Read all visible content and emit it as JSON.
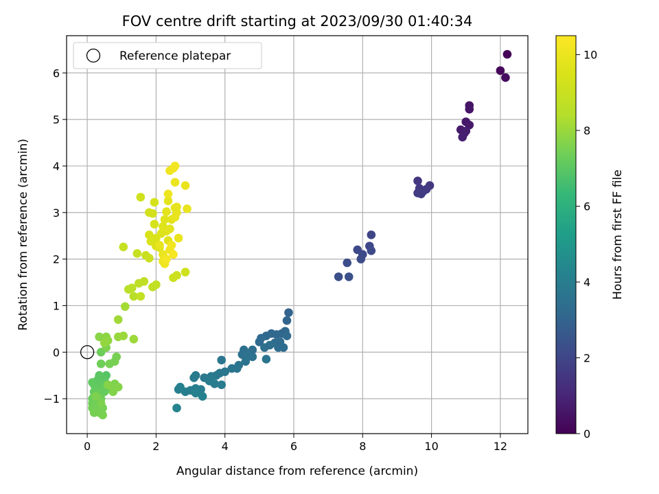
{
  "chart_data": {
    "type": "scatter",
    "title": "FOV centre drift starting at 2023/09/30 01:40:34",
    "xlabel": "Angular distance from reference (arcmin)",
    "ylabel": "Rotation from reference (arcmin)",
    "xlim": [
      -0.6,
      12.8
    ],
    "ylim": [
      -1.75,
      6.8
    ],
    "xticks": [
      0,
      2,
      4,
      6,
      8,
      10,
      12
    ],
    "yticks": [
      -1,
      0,
      1,
      2,
      3,
      4,
      5,
      6
    ],
    "xtick_labels": [
      "0",
      "2",
      "4",
      "6",
      "8",
      "10",
      "12"
    ],
    "ytick_labels": [
      "−1",
      "0",
      "1",
      "2",
      "3",
      "4",
      "5",
      "6"
    ],
    "grid": true,
    "legend": {
      "position": "top-left",
      "entries": [
        "Reference platepar"
      ]
    },
    "reference_point": {
      "x": 0,
      "y": 0
    },
    "colorbar": {
      "label": "Hours from first FF file",
      "range": [
        0,
        10.5
      ],
      "ticks": [
        0,
        2,
        4,
        6,
        8,
        10
      ],
      "tick_labels": [
        "0",
        "2",
        "4",
        "6",
        "8",
        "10"
      ],
      "colormap": "viridis"
    },
    "points": [
      {
        "x": 12.2,
        "y": 6.4,
        "h": 0.1
      },
      {
        "x": 12.0,
        "y": 6.05,
        "h": 0.2
      },
      {
        "x": 12.15,
        "y": 5.9,
        "h": 0.3
      },
      {
        "x": 11.1,
        "y": 5.3,
        "h": 0.5
      },
      {
        "x": 11.1,
        "y": 5.22,
        "h": 0.55
      },
      {
        "x": 11.0,
        "y": 4.95,
        "h": 0.6
      },
      {
        "x": 11.1,
        "y": 4.88,
        "h": 0.65
      },
      {
        "x": 10.85,
        "y": 4.78,
        "h": 0.7
      },
      {
        "x": 11.0,
        "y": 4.75,
        "h": 0.75
      },
      {
        "x": 10.95,
        "y": 4.7,
        "h": 0.8
      },
      {
        "x": 10.9,
        "y": 4.62,
        "h": 0.85
      },
      {
        "x": 9.6,
        "y": 3.68,
        "h": 1.5
      },
      {
        "x": 9.95,
        "y": 3.58,
        "h": 1.55
      },
      {
        "x": 9.65,
        "y": 3.52,
        "h": 1.6
      },
      {
        "x": 9.85,
        "y": 3.5,
        "h": 1.62
      },
      {
        "x": 9.75,
        "y": 3.45,
        "h": 1.65
      },
      {
        "x": 9.6,
        "y": 3.42,
        "h": 1.7
      },
      {
        "x": 9.7,
        "y": 3.4,
        "h": 1.72
      },
      {
        "x": 8.25,
        "y": 2.52,
        "h": 2.0
      },
      {
        "x": 8.2,
        "y": 2.28,
        "h": 2.05
      },
      {
        "x": 7.85,
        "y": 2.2,
        "h": 2.1
      },
      {
        "x": 8.25,
        "y": 2.18,
        "h": 2.12
      },
      {
        "x": 8.0,
        "y": 2.1,
        "h": 2.15
      },
      {
        "x": 7.95,
        "y": 2.0,
        "h": 2.2
      },
      {
        "x": 7.55,
        "y": 1.92,
        "h": 2.25
      },
      {
        "x": 7.3,
        "y": 1.62,
        "h": 2.3
      },
      {
        "x": 7.6,
        "y": 1.62,
        "h": 2.35
      },
      {
        "x": 5.85,
        "y": 0.85,
        "h": 3.0
      },
      {
        "x": 5.8,
        "y": 0.68,
        "h": 3.05
      },
      {
        "x": 5.75,
        "y": 0.45,
        "h": 3.1
      },
      {
        "x": 5.65,
        "y": 0.4,
        "h": 3.12
      },
      {
        "x": 5.5,
        "y": 0.38,
        "h": 3.15
      },
      {
        "x": 5.35,
        "y": 0.4,
        "h": 3.17
      },
      {
        "x": 5.2,
        "y": 0.35,
        "h": 3.2
      },
      {
        "x": 5.05,
        "y": 0.3,
        "h": 3.22
      },
      {
        "x": 5.0,
        "y": 0.22,
        "h": 3.25
      },
      {
        "x": 5.8,
        "y": 0.35,
        "h": 3.27
      },
      {
        "x": 5.6,
        "y": 0.22,
        "h": 3.3
      },
      {
        "x": 5.45,
        "y": 0.2,
        "h": 3.32
      },
      {
        "x": 5.7,
        "y": 0.1,
        "h": 3.35
      },
      {
        "x": 5.55,
        "y": 0.1,
        "h": 3.37
      },
      {
        "x": 5.3,
        "y": 0.15,
        "h": 3.4
      },
      {
        "x": 5.15,
        "y": 0.1,
        "h": 3.42
      },
      {
        "x": 4.8,
        "y": 0.05,
        "h": 3.45
      },
      {
        "x": 4.55,
        "y": 0.05,
        "h": 3.5
      },
      {
        "x": 4.5,
        "y": -0.05,
        "h": 3.52
      },
      {
        "x": 4.65,
        "y": -0.05,
        "h": 3.55
      },
      {
        "x": 4.8,
        "y": -0.1,
        "h": 3.57
      },
      {
        "x": 5.2,
        "y": -0.15,
        "h": 3.6
      },
      {
        "x": 4.6,
        "y": -0.2,
        "h": 3.62
      },
      {
        "x": 4.4,
        "y": -0.28,
        "h": 3.65
      },
      {
        "x": 4.35,
        "y": -0.35,
        "h": 3.67
      },
      {
        "x": 4.2,
        "y": -0.35,
        "h": 3.7
      },
      {
        "x": 3.9,
        "y": -0.17,
        "h": 3.72
      },
      {
        "x": 4.0,
        "y": -0.42,
        "h": 3.75
      },
      {
        "x": 3.85,
        "y": -0.45,
        "h": 3.77
      },
      {
        "x": 3.75,
        "y": -0.5,
        "h": 3.8
      },
      {
        "x": 3.6,
        "y": -0.52,
        "h": 3.82
      },
      {
        "x": 3.4,
        "y": -0.55,
        "h": 3.85
      },
      {
        "x": 3.15,
        "y": -0.5,
        "h": 3.87
      },
      {
        "x": 3.1,
        "y": -0.55,
        "h": 3.9
      },
      {
        "x": 3.55,
        "y": -0.62,
        "h": 3.92
      },
      {
        "x": 3.7,
        "y": -0.68,
        "h": 3.95
      },
      {
        "x": 3.9,
        "y": -0.7,
        "h": 3.97
      },
      {
        "x": 3.3,
        "y": -0.8,
        "h": 4.0
      },
      {
        "x": 3.15,
        "y": -0.78,
        "h": 4.02
      },
      {
        "x": 3.0,
        "y": -0.82,
        "h": 4.05
      },
      {
        "x": 2.85,
        "y": -0.85,
        "h": 4.07
      },
      {
        "x": 2.7,
        "y": -0.75,
        "h": 4.1
      },
      {
        "x": 2.65,
        "y": -0.8,
        "h": 4.12
      },
      {
        "x": 3.15,
        "y": -0.88,
        "h": 4.15
      },
      {
        "x": 3.35,
        "y": -0.95,
        "h": 4.17
      },
      {
        "x": 2.6,
        "y": -1.2,
        "h": 4.2
      },
      {
        "x": 0.55,
        "y": -0.5,
        "h": 6.9
      },
      {
        "x": 0.45,
        "y": -0.55,
        "h": 6.95
      },
      {
        "x": 0.5,
        "y": -0.6,
        "h": 7.0
      },
      {
        "x": 0.35,
        "y": -0.5,
        "h": 7.0
      },
      {
        "x": 0.3,
        "y": -0.6,
        "h": 7.02
      },
      {
        "x": 0.25,
        "y": -0.65,
        "h": 7.05
      },
      {
        "x": 0.2,
        "y": -0.7,
        "h": 7.07
      },
      {
        "x": 0.15,
        "y": -0.65,
        "h": 7.1
      },
      {
        "x": 0.45,
        "y": -0.7,
        "h": 7.1
      },
      {
        "x": 0.4,
        "y": -0.8,
        "h": 7.12
      },
      {
        "x": 0.3,
        "y": -0.8,
        "h": 7.15
      },
      {
        "x": 0.2,
        "y": -0.85,
        "h": 7.17
      },
      {
        "x": 0.5,
        "y": -0.85,
        "h": 7.2
      },
      {
        "x": 0.55,
        "y": -0.78,
        "h": 7.2
      },
      {
        "x": 0.35,
        "y": -0.9,
        "h": 7.22
      },
      {
        "x": 0.2,
        "y": -0.95,
        "h": 7.25
      },
      {
        "x": 0.15,
        "y": -1.0,
        "h": 7.27
      },
      {
        "x": 0.3,
        "y": -1.05,
        "h": 7.3
      },
      {
        "x": 0.15,
        "y": -1.1,
        "h": 7.32
      },
      {
        "x": 0.4,
        "y": -1.0,
        "h": 7.35
      },
      {
        "x": 0.25,
        "y": -1.15,
        "h": 7.37
      },
      {
        "x": 0.15,
        "y": -1.2,
        "h": 7.4
      },
      {
        "x": 0.3,
        "y": -1.25,
        "h": 7.42
      },
      {
        "x": 0.45,
        "y": -1.2,
        "h": 7.45
      },
      {
        "x": 0.2,
        "y": -1.3,
        "h": 7.47
      },
      {
        "x": 0.35,
        "y": -1.3,
        "h": 7.5
      },
      {
        "x": 0.45,
        "y": -1.35,
        "h": 7.52
      },
      {
        "x": 0.4,
        "y": -1.1,
        "h": 7.55
      },
      {
        "x": 0.25,
        "y": -0.95,
        "h": 7.57
      },
      {
        "x": 0.4,
        "y": 0.0,
        "h": 7.3
      },
      {
        "x": 0.4,
        "y": -0.25,
        "h": 7.35
      },
      {
        "x": 0.65,
        "y": -0.25,
        "h": 7.45
      },
      {
        "x": 0.85,
        "y": -0.1,
        "h": 7.5
      },
      {
        "x": 0.8,
        "y": -0.2,
        "h": 7.5
      },
      {
        "x": 0.55,
        "y": 0.1,
        "h": 7.55
      },
      {
        "x": 0.8,
        "y": -0.68,
        "h": 7.6
      },
      {
        "x": 0.7,
        "y": -0.72,
        "h": 7.62
      },
      {
        "x": 0.75,
        "y": -0.85,
        "h": 7.65
      },
      {
        "x": 0.9,
        "y": -0.75,
        "h": 7.67
      },
      {
        "x": 0.6,
        "y": -0.7,
        "h": 7.7
      },
      {
        "x": 0.35,
        "y": 0.33,
        "h": 7.75
      },
      {
        "x": 0.55,
        "y": 0.33,
        "h": 7.8
      },
      {
        "x": 0.6,
        "y": 0.25,
        "h": 7.85
      },
      {
        "x": 0.5,
        "y": 0.2,
        "h": 7.9
      },
      {
        "x": 0.9,
        "y": 0.33,
        "h": 7.95
      },
      {
        "x": 1.05,
        "y": 0.35,
        "h": 8.0
      },
      {
        "x": 1.35,
        "y": 0.28,
        "h": 8.05
      },
      {
        "x": 0.9,
        "y": 0.7,
        "h": 8.1
      },
      {
        "x": 1.1,
        "y": 0.98,
        "h": 8.15
      },
      {
        "x": 1.35,
        "y": 1.2,
        "h": 8.5
      },
      {
        "x": 1.2,
        "y": 1.35,
        "h": 8.55
      },
      {
        "x": 1.3,
        "y": 1.38,
        "h": 8.6
      },
      {
        "x": 1.5,
        "y": 1.48,
        "h": 8.65
      },
      {
        "x": 1.65,
        "y": 1.52,
        "h": 8.7
      },
      {
        "x": 1.9,
        "y": 1.4,
        "h": 8.75
      },
      {
        "x": 2.0,
        "y": 1.45,
        "h": 8.8
      },
      {
        "x": 1.55,
        "y": 1.2,
        "h": 8.85
      },
      {
        "x": 1.05,
        "y": 2.26,
        "h": 8.9
      },
      {
        "x": 1.45,
        "y": 2.12,
        "h": 8.95
      },
      {
        "x": 1.7,
        "y": 2.08,
        "h": 9.0
      },
      {
        "x": 1.8,
        "y": 2.02,
        "h": 9.05
      },
      {
        "x": 2.5,
        "y": 1.6,
        "h": 9.1
      },
      {
        "x": 2.6,
        "y": 1.65,
        "h": 9.12
      },
      {
        "x": 2.85,
        "y": 1.72,
        "h": 9.15
      },
      {
        "x": 1.55,
        "y": 3.33,
        "h": 9.2
      },
      {
        "x": 1.8,
        "y": 3.0,
        "h": 9.25
      },
      {
        "x": 1.9,
        "y": 2.98,
        "h": 9.3
      },
      {
        "x": 1.95,
        "y": 3.22,
        "h": 9.35
      },
      {
        "x": 1.95,
        "y": 2.75,
        "h": 9.4
      },
      {
        "x": 1.8,
        "y": 2.52,
        "h": 9.45
      },
      {
        "x": 1.85,
        "y": 2.38,
        "h": 9.5
      },
      {
        "x": 2.0,
        "y": 2.45,
        "h": 9.52
      },
      {
        "x": 2.0,
        "y": 2.28,
        "h": 9.55
      },
      {
        "x": 2.1,
        "y": 2.25,
        "h": 9.57
      },
      {
        "x": 2.15,
        "y": 2.55,
        "h": 9.6
      },
      {
        "x": 2.2,
        "y": 2.7,
        "h": 9.62
      },
      {
        "x": 2.25,
        "y": 2.85,
        "h": 9.65
      },
      {
        "x": 2.3,
        "y": 2.6,
        "h": 9.67
      },
      {
        "x": 2.35,
        "y": 2.4,
        "h": 9.7
      },
      {
        "x": 2.4,
        "y": 2.65,
        "h": 9.72
      },
      {
        "x": 2.45,
        "y": 2.85,
        "h": 9.75
      },
      {
        "x": 2.3,
        "y": 3.02,
        "h": 9.77
      },
      {
        "x": 2.35,
        "y": 3.25,
        "h": 9.8
      },
      {
        "x": 2.55,
        "y": 3.1,
        "h": 9.82
      },
      {
        "x": 2.6,
        "y": 3.12,
        "h": 9.85
      },
      {
        "x": 2.6,
        "y": 3.0,
        "h": 9.87
      },
      {
        "x": 2.55,
        "y": 2.9,
        "h": 9.9
      },
      {
        "x": 2.65,
        "y": 2.45,
        "h": 9.92
      },
      {
        "x": 2.9,
        "y": 3.08,
        "h": 9.95
      },
      {
        "x": 2.85,
        "y": 3.58,
        "h": 9.97
      },
      {
        "x": 2.55,
        "y": 3.65,
        "h": 10.0
      },
      {
        "x": 2.35,
        "y": 3.4,
        "h": 10.05
      },
      {
        "x": 2.4,
        "y": 3.9,
        "h": 10.1
      },
      {
        "x": 2.5,
        "y": 3.95,
        "h": 10.15
      },
      {
        "x": 2.55,
        "y": 4.0,
        "h": 10.2
      },
      {
        "x": 2.2,
        "y": 2.1,
        "h": 10.0
      },
      {
        "x": 2.2,
        "y": 1.95,
        "h": 10.05
      },
      {
        "x": 2.25,
        "y": 1.9,
        "h": 10.1
      },
      {
        "x": 2.4,
        "y": 2.2,
        "h": 10.15
      },
      {
        "x": 2.45,
        "y": 2.3,
        "h": 10.2
      },
      {
        "x": 2.1,
        "y": 2.3,
        "h": 9.9
      },
      {
        "x": 2.3,
        "y": 2.0,
        "h": 10.25
      },
      {
        "x": 2.5,
        "y": 2.1,
        "h": 10.3
      }
    ]
  }
}
